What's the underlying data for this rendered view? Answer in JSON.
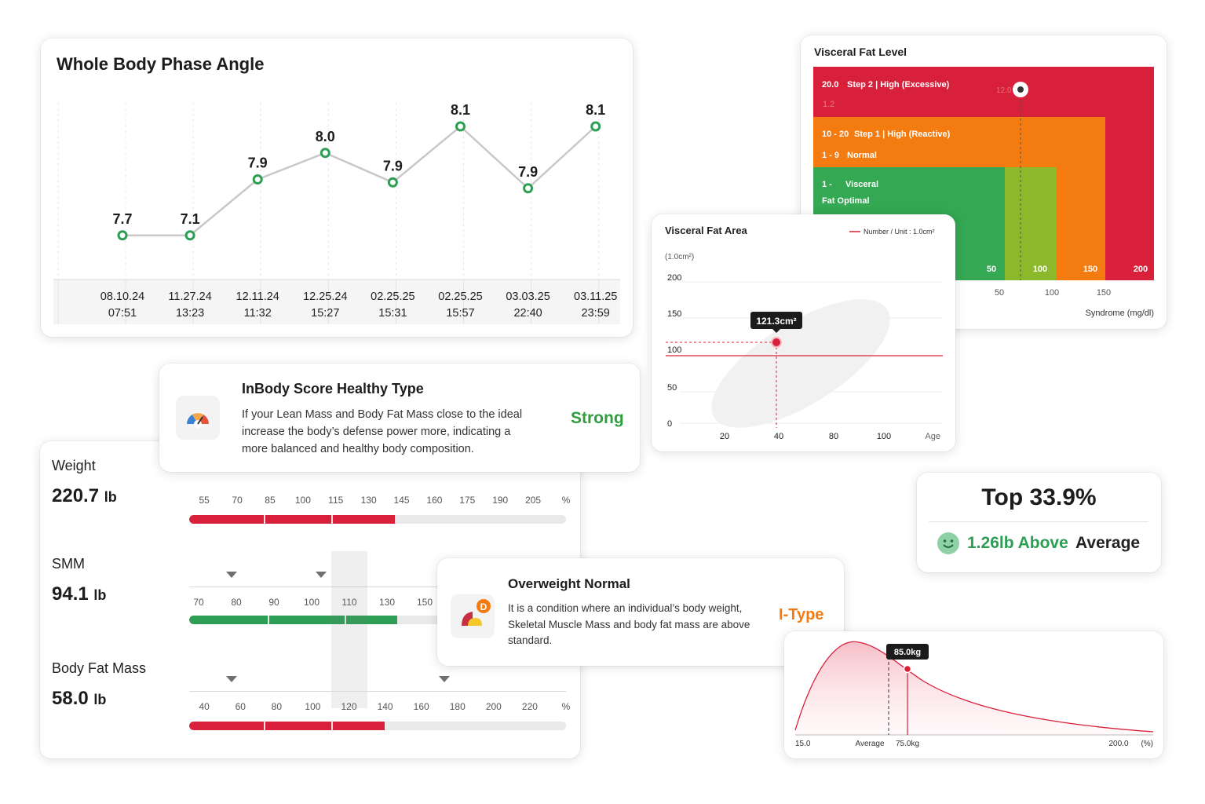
{
  "phase_angle": {
    "title": "Whole Body Phase Angle",
    "chart_data": {
      "type": "line",
      "title": "Whole Body Phase Angle",
      "categories": [
        "08.10.24 07:51",
        "11.27.24 13:23",
        "12.11.24 11:32",
        "12.25.24 15:27",
        "02.25.25 15:31",
        "02.25.25 15:57",
        "03.03.25 22:40",
        "03.11.25 23:59"
      ],
      "values": [
        7.7,
        7.1,
        7.9,
        8.0,
        7.9,
        8.1,
        7.9,
        8.1
      ],
      "series_plot_values": [
        6.75,
        6.75,
        7.7,
        8.15,
        7.65,
        8.6,
        7.55,
        8.6
      ]
    },
    "dates": [
      {
        "d": "08.10.24",
        "t": "07:51"
      },
      {
        "d": "11.27.24",
        "t": "13:23"
      },
      {
        "d": "12.11.24",
        "t": "11:32"
      },
      {
        "d": "12.25.24",
        "t": "15:27"
      },
      {
        "d": "02.25.25",
        "t": "15:31"
      },
      {
        "d": "02.25.25",
        "t": "15:57"
      },
      {
        "d": "03.03.25",
        "t": "22:40"
      },
      {
        "d": "03.11.25",
        "t": "23:59"
      }
    ],
    "value_labels": [
      "7.7",
      "7.1",
      "7.9",
      "8.0",
      "7.9",
      "8.1",
      "7.9",
      "8.1"
    ],
    "line_color": "#c8c8c8",
    "point_color": "#2e9e55"
  },
  "visceral_fat_level": {
    "title": "Visceral Fat Level",
    "bands": [
      {
        "range": "20.0",
        "label": "Step 2 | High (Excessive)",
        "color": "#d9203a"
      },
      {
        "range": "10 - 20",
        "label": "Step 1 | High (Reactive)",
        "color": "#f47b10"
      },
      {
        "range": "1 - 9",
        "label": "Normal",
        "color": "#8cb82c"
      },
      {
        "range": "1 -",
        "label": "Visceral",
        "color": "#34a853"
      }
    ],
    "band_extra": "Fat Optimal",
    "marker_faint_1": "12.0",
    "marker_faint_2": "1.2",
    "inner_ticks": [
      "50",
      "100",
      "150",
      "200"
    ],
    "outer_ticks": [
      "50",
      "100",
      "150"
    ],
    "axis_label": "Syndrome (mg/dl)"
  },
  "visceral_fat_area": {
    "title": "Visceral Fat Area",
    "legend": "Number / Unit : 1.0cm²",
    "unit": "(1.0cm²)",
    "tooltip": "121.3cm²",
    "y_ticks": [
      "200",
      "150",
      "100",
      "50",
      "0"
    ],
    "x_ticks": [
      "20",
      "40",
      "80",
      "100"
    ],
    "x_label": "Age",
    "chart_data": {
      "type": "scatter",
      "x": [
        40
      ],
      "y": [
        121.3
      ],
      "reference_line": 100,
      "ylim": [
        0,
        200
      ],
      "xlabel": "Age",
      "ylabel": "(1.0cm²)"
    }
  },
  "inbody_score": {
    "title": "InBody Score Healthy Type",
    "desc_line1": "If your Lean Mass and Body Fat Mass close to the ideal",
    "desc_line2": "increase the body’s defense power more, indicating a",
    "desc_line3": "more balanced and healthy body composition.",
    "verdict": "Strong",
    "verdict_color": "#2e9e3e",
    "icon": "gauge-icon"
  },
  "weights": {
    "weight": {
      "label": "Weight",
      "value": "220.7",
      "unit": "lb",
      "ticks": [
        "55",
        "70",
        "85",
        "100",
        "115",
        "130",
        "145",
        "160",
        "175",
        "190",
        "205",
        "%"
      ],
      "fill": 0.545,
      "color": "#d9203a"
    },
    "smm": {
      "label": "SMM",
      "value": "94.1",
      "unit": "lb",
      "ticks": [
        "70",
        "80",
        "90",
        "100",
        "110",
        "130",
        "150"
      ],
      "fill": 0.553,
      "color": "#2e9e55"
    },
    "bfm": {
      "label": "Body Fat Mass",
      "value": "58.0",
      "unit": "lb",
      "ticks": [
        "40",
        "60",
        "80",
        "100",
        "120",
        "140",
        "160",
        "180",
        "200",
        "220",
        "%"
      ],
      "fill": 0.518,
      "color": "#d9203a"
    }
  },
  "top_rank": {
    "title": "Top 33.9%",
    "value": "1.26lb Above",
    "suffix": "Average",
    "icon": "smile-icon",
    "accent": "#2e9e55"
  },
  "overweight": {
    "title": "Overweight Normal",
    "desc_line1": "It is a condition where an individual’s body weight,",
    "desc_line2": "Skeletal Muscle Mass and body fat mass are above",
    "desc_line3": "standard.",
    "type": "I-Type",
    "type_color": "#f47b10",
    "icon": "body-type-icon",
    "badge": "D"
  },
  "distribution": {
    "tooltip": "85.0kg",
    "label_min": "15.0",
    "label_avg": "Average",
    "label_user": "75.0kg",
    "label_max": "200.0",
    "label_unit": "(%)"
  }
}
